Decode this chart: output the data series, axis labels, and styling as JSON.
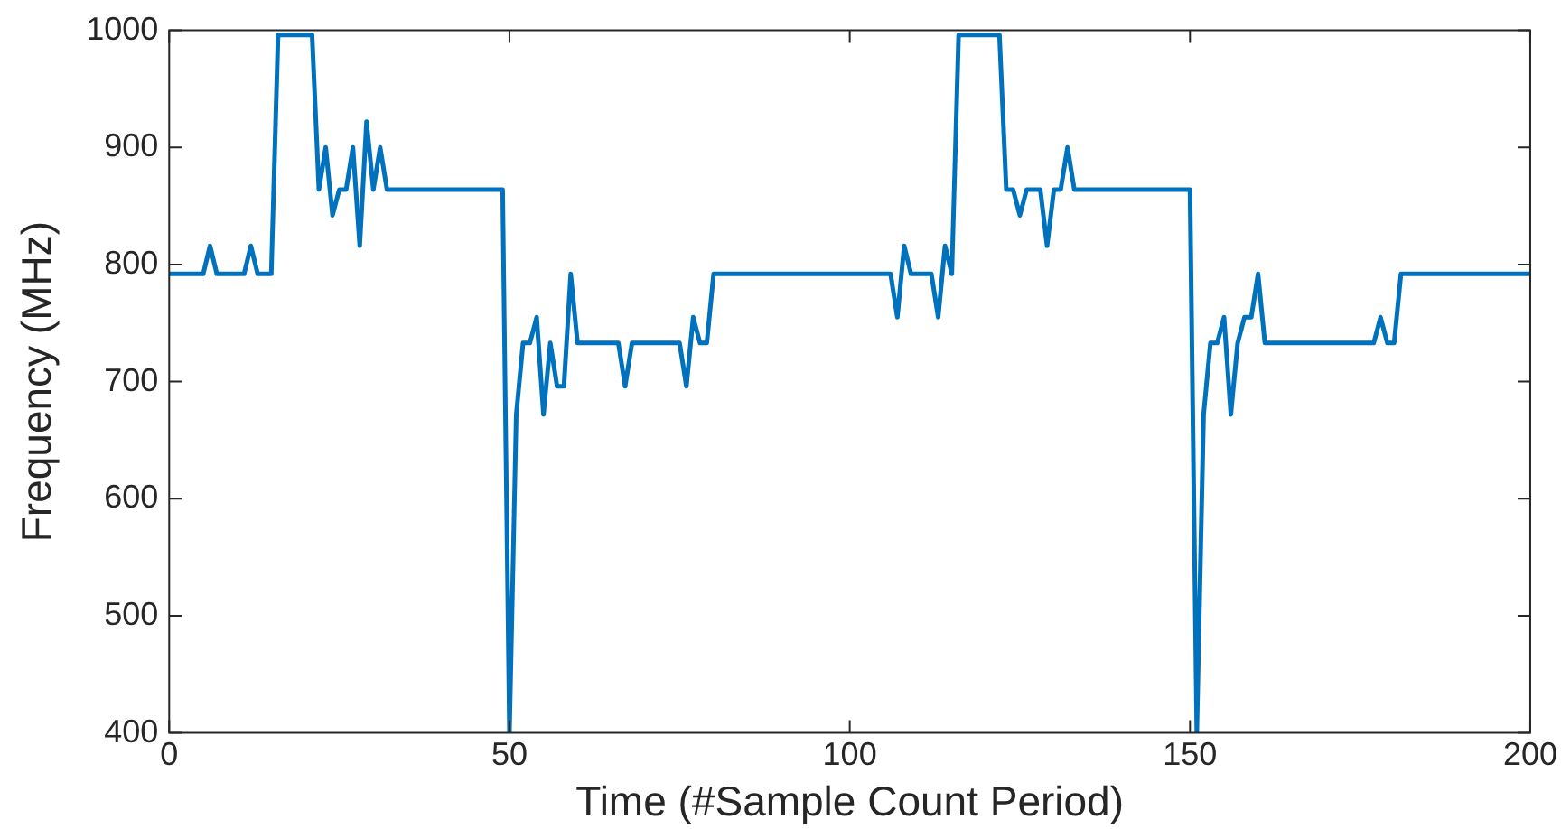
{
  "chart_data": {
    "type": "line",
    "xlabel": "Time (#Sample Count Period)",
    "ylabel": "Frequency (MHz)",
    "xlim": [
      0,
      200
    ],
    "xticks": [
      0,
      50,
      100,
      150,
      200
    ],
    "ylim": [
      400,
      1000
    ],
    "yticks": [
      400,
      500,
      600,
      700,
      800,
      900,
      1000
    ],
    "grid": false,
    "legend": false,
    "marker": "none",
    "line_style": "solid",
    "series": [
      {
        "color": "#0072bd",
        "x": [
          0,
          5,
          6,
          7,
          11,
          12,
          13,
          15,
          16,
          21,
          22,
          23,
          24,
          25,
          26,
          27,
          28,
          29,
          30,
          31,
          32,
          49,
          50,
          51,
          52,
          53,
          54,
          55,
          56,
          57,
          58,
          59,
          60,
          66,
          67,
          68,
          75,
          76,
          77,
          78,
          79,
          80,
          106,
          107,
          108,
          109,
          112,
          113,
          114,
          115,
          116,
          122,
          123,
          124,
          125,
          126,
          128,
          129,
          130,
          131,
          132,
          133,
          150,
          151,
          152,
          153,
          154,
          155,
          156,
          157,
          158,
          159,
          160,
          161,
          177,
          178,
          179,
          180,
          181,
          200
        ],
        "values": [
          792,
          792,
          816,
          792,
          792,
          816,
          792,
          792,
          996,
          996,
          864,
          900,
          842,
          864,
          864,
          900,
          816,
          922,
          864,
          900,
          864,
          864,
          400,
          672,
          733,
          733,
          755,
          672,
          733,
          696,
          696,
          792,
          733,
          733,
          696,
          733,
          733,
          696,
          755,
          733,
          733,
          792,
          792,
          755,
          816,
          792,
          792,
          755,
          816,
          792,
          996,
          996,
          864,
          864,
          842,
          864,
          864,
          816,
          864,
          864,
          900,
          864,
          864,
          400,
          672,
          733,
          733,
          755,
          672,
          733,
          755,
          755,
          792,
          733,
          733,
          755,
          733,
          733,
          792,
          792
        ]
      }
    ]
  }
}
